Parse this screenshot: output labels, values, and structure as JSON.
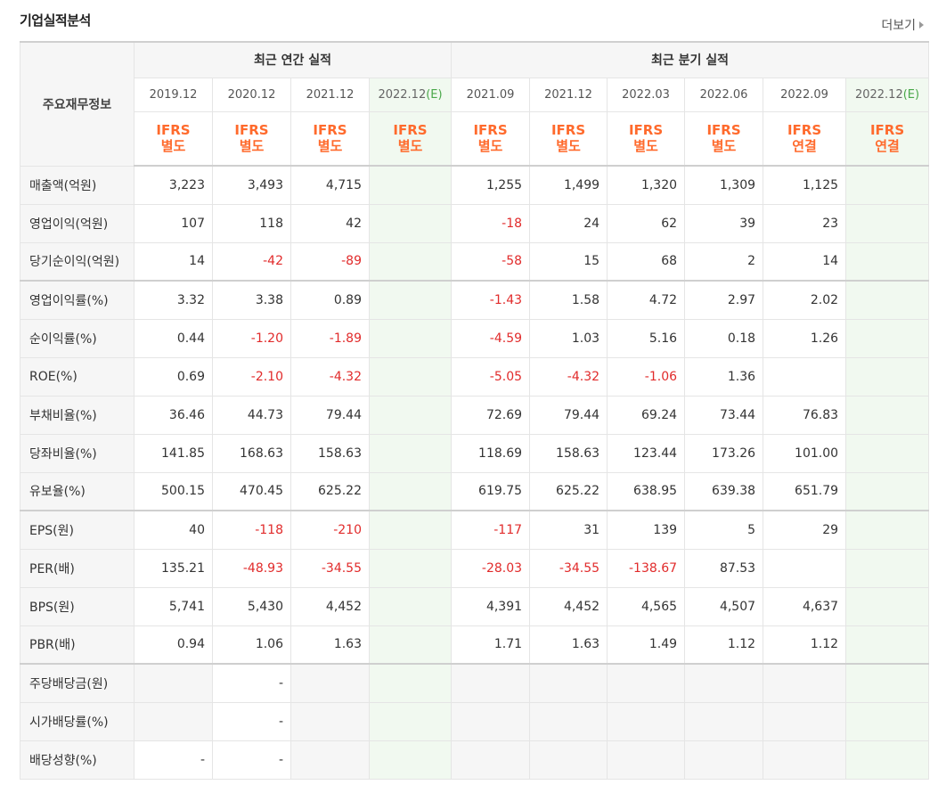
{
  "section_title": "기업실적분석",
  "more_label": "더보기",
  "headers": {
    "corner": "주요재무정보",
    "annual_group": "최근 연간 실적",
    "quarter_group": "최근 분기 실적",
    "annual_dates": [
      "2019.12",
      "2020.12",
      "2021.12",
      "2022.12"
    ],
    "annual_est_suffix": "(E)",
    "quarter_dates": [
      "2021.09",
      "2021.12",
      "2022.03",
      "2022.06",
      "2022.09",
      "2022.12"
    ],
    "quarter_est_suffix": "(E)",
    "ifrs_top": "IFRS",
    "annual_ifrs": [
      "별도",
      "별도",
      "별도",
      "별도"
    ],
    "quarter_ifrs": [
      "별도",
      "별도",
      "별도",
      "별도",
      "연결",
      "연결"
    ]
  },
  "rows": [
    {
      "label": "매출액(억원)",
      "annual": [
        "3,223",
        "3,493",
        "4,715",
        ""
      ],
      "quarter": [
        "1,255",
        "1,499",
        "1,320",
        "1,309",
        "1,125",
        ""
      ]
    },
    {
      "label": "영업이익(억원)",
      "annual": [
        "107",
        "118",
        "42",
        ""
      ],
      "quarter": [
        "-18",
        "24",
        "62",
        "39",
        "23",
        ""
      ]
    },
    {
      "label": "당기순이익(억원)",
      "annual": [
        "14",
        "-42",
        "-89",
        ""
      ],
      "quarter": [
        "-58",
        "15",
        "68",
        "2",
        "14",
        ""
      ]
    },
    {
      "label": "영업이익률(%)",
      "annual": [
        "3.32",
        "3.38",
        "0.89",
        ""
      ],
      "quarter": [
        "-1.43",
        "1.58",
        "4.72",
        "2.97",
        "2.02",
        ""
      ]
    },
    {
      "label": "순이익률(%)",
      "annual": [
        "0.44",
        "-1.20",
        "-1.89",
        ""
      ],
      "quarter": [
        "-4.59",
        "1.03",
        "5.16",
        "0.18",
        "1.26",
        ""
      ]
    },
    {
      "label": "ROE(%)",
      "annual": [
        "0.69",
        "-2.10",
        "-4.32",
        ""
      ],
      "quarter": [
        "-5.05",
        "-4.32",
        "-1.06",
        "1.36",
        "",
        ""
      ]
    },
    {
      "label": "부채비율(%)",
      "annual": [
        "36.46",
        "44.73",
        "79.44",
        ""
      ],
      "quarter": [
        "72.69",
        "79.44",
        "69.24",
        "73.44",
        "76.83",
        ""
      ]
    },
    {
      "label": "당좌비율(%)",
      "annual": [
        "141.85",
        "168.63",
        "158.63",
        ""
      ],
      "quarter": [
        "118.69",
        "158.63",
        "123.44",
        "173.26",
        "101.00",
        ""
      ]
    },
    {
      "label": "유보율(%)",
      "annual": [
        "500.15",
        "470.45",
        "625.22",
        ""
      ],
      "quarter": [
        "619.75",
        "625.22",
        "638.95",
        "639.38",
        "651.79",
        ""
      ]
    },
    {
      "label": "EPS(원)",
      "annual": [
        "40",
        "-118",
        "-210",
        ""
      ],
      "quarter": [
        "-117",
        "31",
        "139",
        "5",
        "29",
        ""
      ]
    },
    {
      "label": "PER(배)",
      "annual": [
        "135.21",
        "-48.93",
        "-34.55",
        ""
      ],
      "quarter": [
        "-28.03",
        "-34.55",
        "-138.67",
        "87.53",
        "",
        ""
      ]
    },
    {
      "label": "BPS(원)",
      "annual": [
        "5,741",
        "5,430",
        "4,452",
        ""
      ],
      "quarter": [
        "4,391",
        "4,452",
        "4,565",
        "4,507",
        "4,637",
        ""
      ]
    },
    {
      "label": "PBR(배)",
      "annual": [
        "0.94",
        "1.06",
        "1.63",
        ""
      ],
      "quarter": [
        "1.71",
        "1.63",
        "1.49",
        "1.12",
        "1.12",
        ""
      ]
    },
    {
      "label": "주당배당금(원)",
      "annual": [
        "",
        "-",
        "",
        ""
      ],
      "quarter": [
        "",
        "",
        "",
        "",
        "",
        ""
      ]
    },
    {
      "label": "시가배당률(%)",
      "annual": [
        "",
        "-",
        "",
        ""
      ],
      "quarter": [
        "",
        "",
        "",
        "",
        "",
        ""
      ]
    },
    {
      "label": "배당성향(%)",
      "annual": [
        "-",
        "-",
        "",
        ""
      ],
      "quarter": [
        "",
        "",
        "",
        "",
        "",
        ""
      ]
    }
  ],
  "group_end_rows": [
    2,
    8,
    12
  ],
  "gray_rows": [
    13,
    14
  ],
  "colors": {
    "negative": "#e12b2b",
    "ifrs": "#ff6a2c",
    "estimate_bg": "#f1f9f0",
    "estimate_mark": "#4aa84a"
  }
}
